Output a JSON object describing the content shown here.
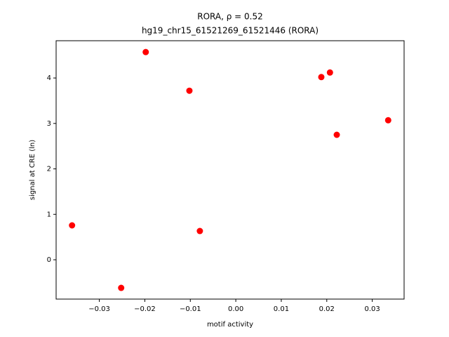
{
  "chart_data": {
    "type": "scatter",
    "title": "RORA, ρ = 0.52",
    "subtitle": "hg19_chr15_61521269_61521446 (RORA)",
    "x_label": "motif activity",
    "y_label": "signal at CRE (ln)",
    "color": "#ff0000",
    "x": [
      -0.036,
      -0.0252,
      -0.0198,
      -0.0102,
      -0.0079,
      0.0188,
      0.0207,
      0.0222,
      0.0335
    ],
    "values": [
      0.757,
      -0.618,
      4.57,
      3.72,
      0.633,
      4.02,
      4.12,
      2.75,
      3.07
    ],
    "xlim": [
      -0.0395,
      0.037
    ],
    "ylim": [
      -0.865,
      4.82
    ],
    "xticks": [
      {
        "value": -0.03,
        "label": "−0.03"
      },
      {
        "value": -0.02,
        "label": "−0.02"
      },
      {
        "value": -0.01,
        "label": "−0.01"
      },
      {
        "value": 0,
        "label": "0.00"
      },
      {
        "value": 0.01,
        "label": "0.01"
      },
      {
        "value": 0.02,
        "label": "0.02"
      },
      {
        "value": 0.03,
        "label": "0.03"
      }
    ],
    "yticks": [
      0,
      1,
      2,
      3,
      4
    ]
  }
}
